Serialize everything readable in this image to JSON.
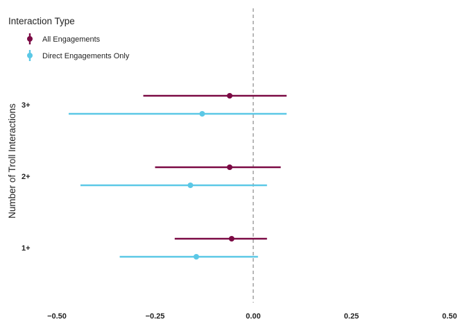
{
  "chart_data": {
    "type": "scatter",
    "subtype": "coefficient-plot-horizontal-error-bars",
    "xlabel": "",
    "ylabel": "Number of Troll Interactions",
    "xlim": [
      -0.5,
      0.5
    ],
    "x_ticks": [
      "−0.50",
      "−0.25",
      "0.00",
      "0.25",
      "0.50"
    ],
    "x_tick_values": [
      -0.5,
      -0.25,
      0,
      0.25,
      0.5
    ],
    "reference_line": 0,
    "categories": [
      "3+",
      "2+",
      "1+"
    ],
    "legend_title": "Interaction Type",
    "legend_position": "top-left",
    "grid": false,
    "series": [
      {
        "name": "All Engagements",
        "color": "#7b0a44",
        "estimates": [
          -0.06,
          -0.06,
          -0.055
        ],
        "lower": [
          -0.28,
          -0.25,
          -0.2
        ],
        "upper": [
          0.085,
          0.07,
          0.035
        ]
      },
      {
        "name": "Direct Engagements Only",
        "color": "#5bc8e6",
        "estimates": [
          -0.13,
          -0.16,
          -0.145
        ],
        "lower": [
          -0.47,
          -0.44,
          -0.34
        ],
        "upper": [
          0.085,
          0.035,
          0.012
        ]
      }
    ]
  }
}
